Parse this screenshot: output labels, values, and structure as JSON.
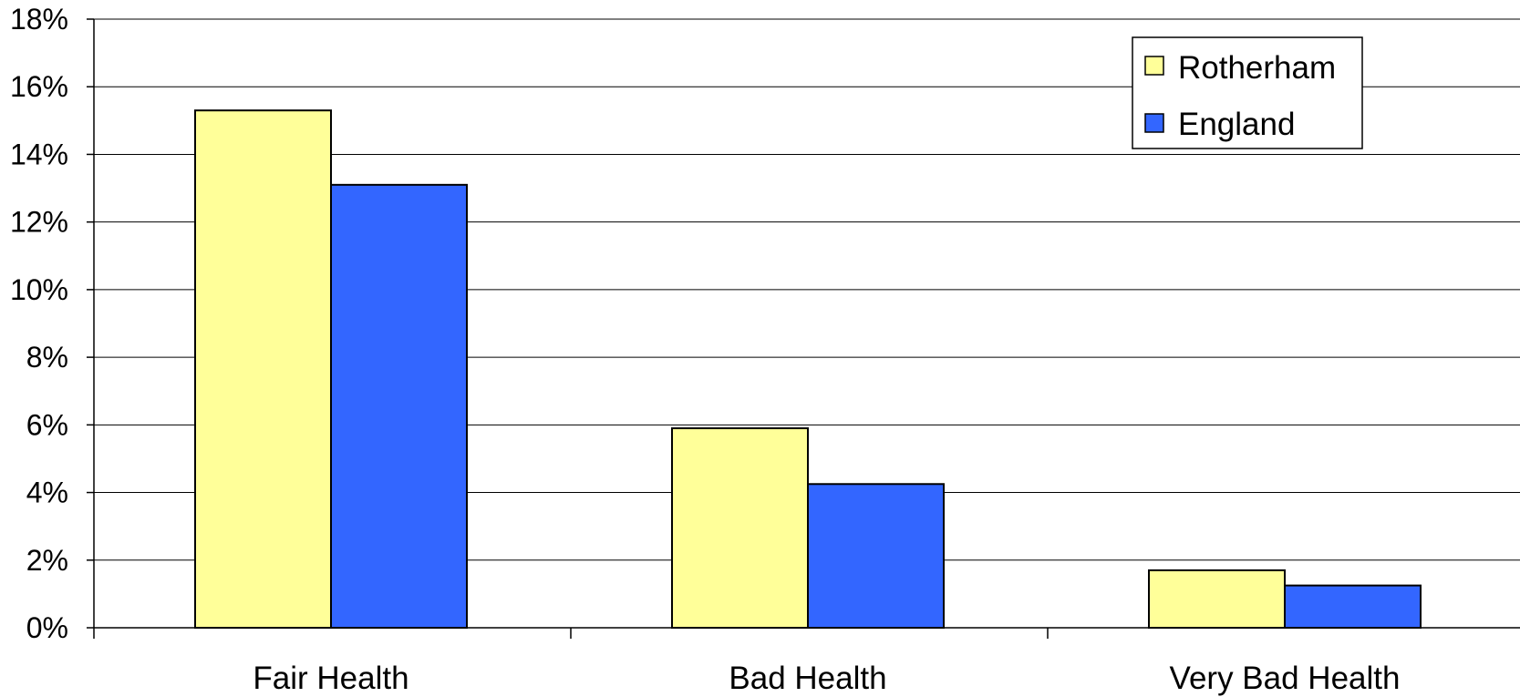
{
  "chart_data": {
    "type": "bar",
    "title": "",
    "xlabel": "",
    "ylabel": "",
    "categories": [
      "Fair Health",
      "Bad Health",
      "Very Bad Health"
    ],
    "series": [
      {
        "name": "Rotherham",
        "color": "#FFFF99",
        "values": [
          15.3,
          5.9,
          1.7
        ]
      },
      {
        "name": "England",
        "color": "#3366FF",
        "values": [
          13.1,
          4.25,
          1.25
        ]
      }
    ],
    "ylim": [
      0,
      18
    ],
    "yticks": [
      0,
      2,
      4,
      6,
      8,
      10,
      12,
      14,
      16,
      18
    ],
    "ytick_labels": [
      "0%",
      "2%",
      "4%",
      "6%",
      "8%",
      "10%",
      "12%",
      "14%",
      "16%",
      "18%"
    ],
    "grid": true,
    "legend_position": "top-right"
  }
}
